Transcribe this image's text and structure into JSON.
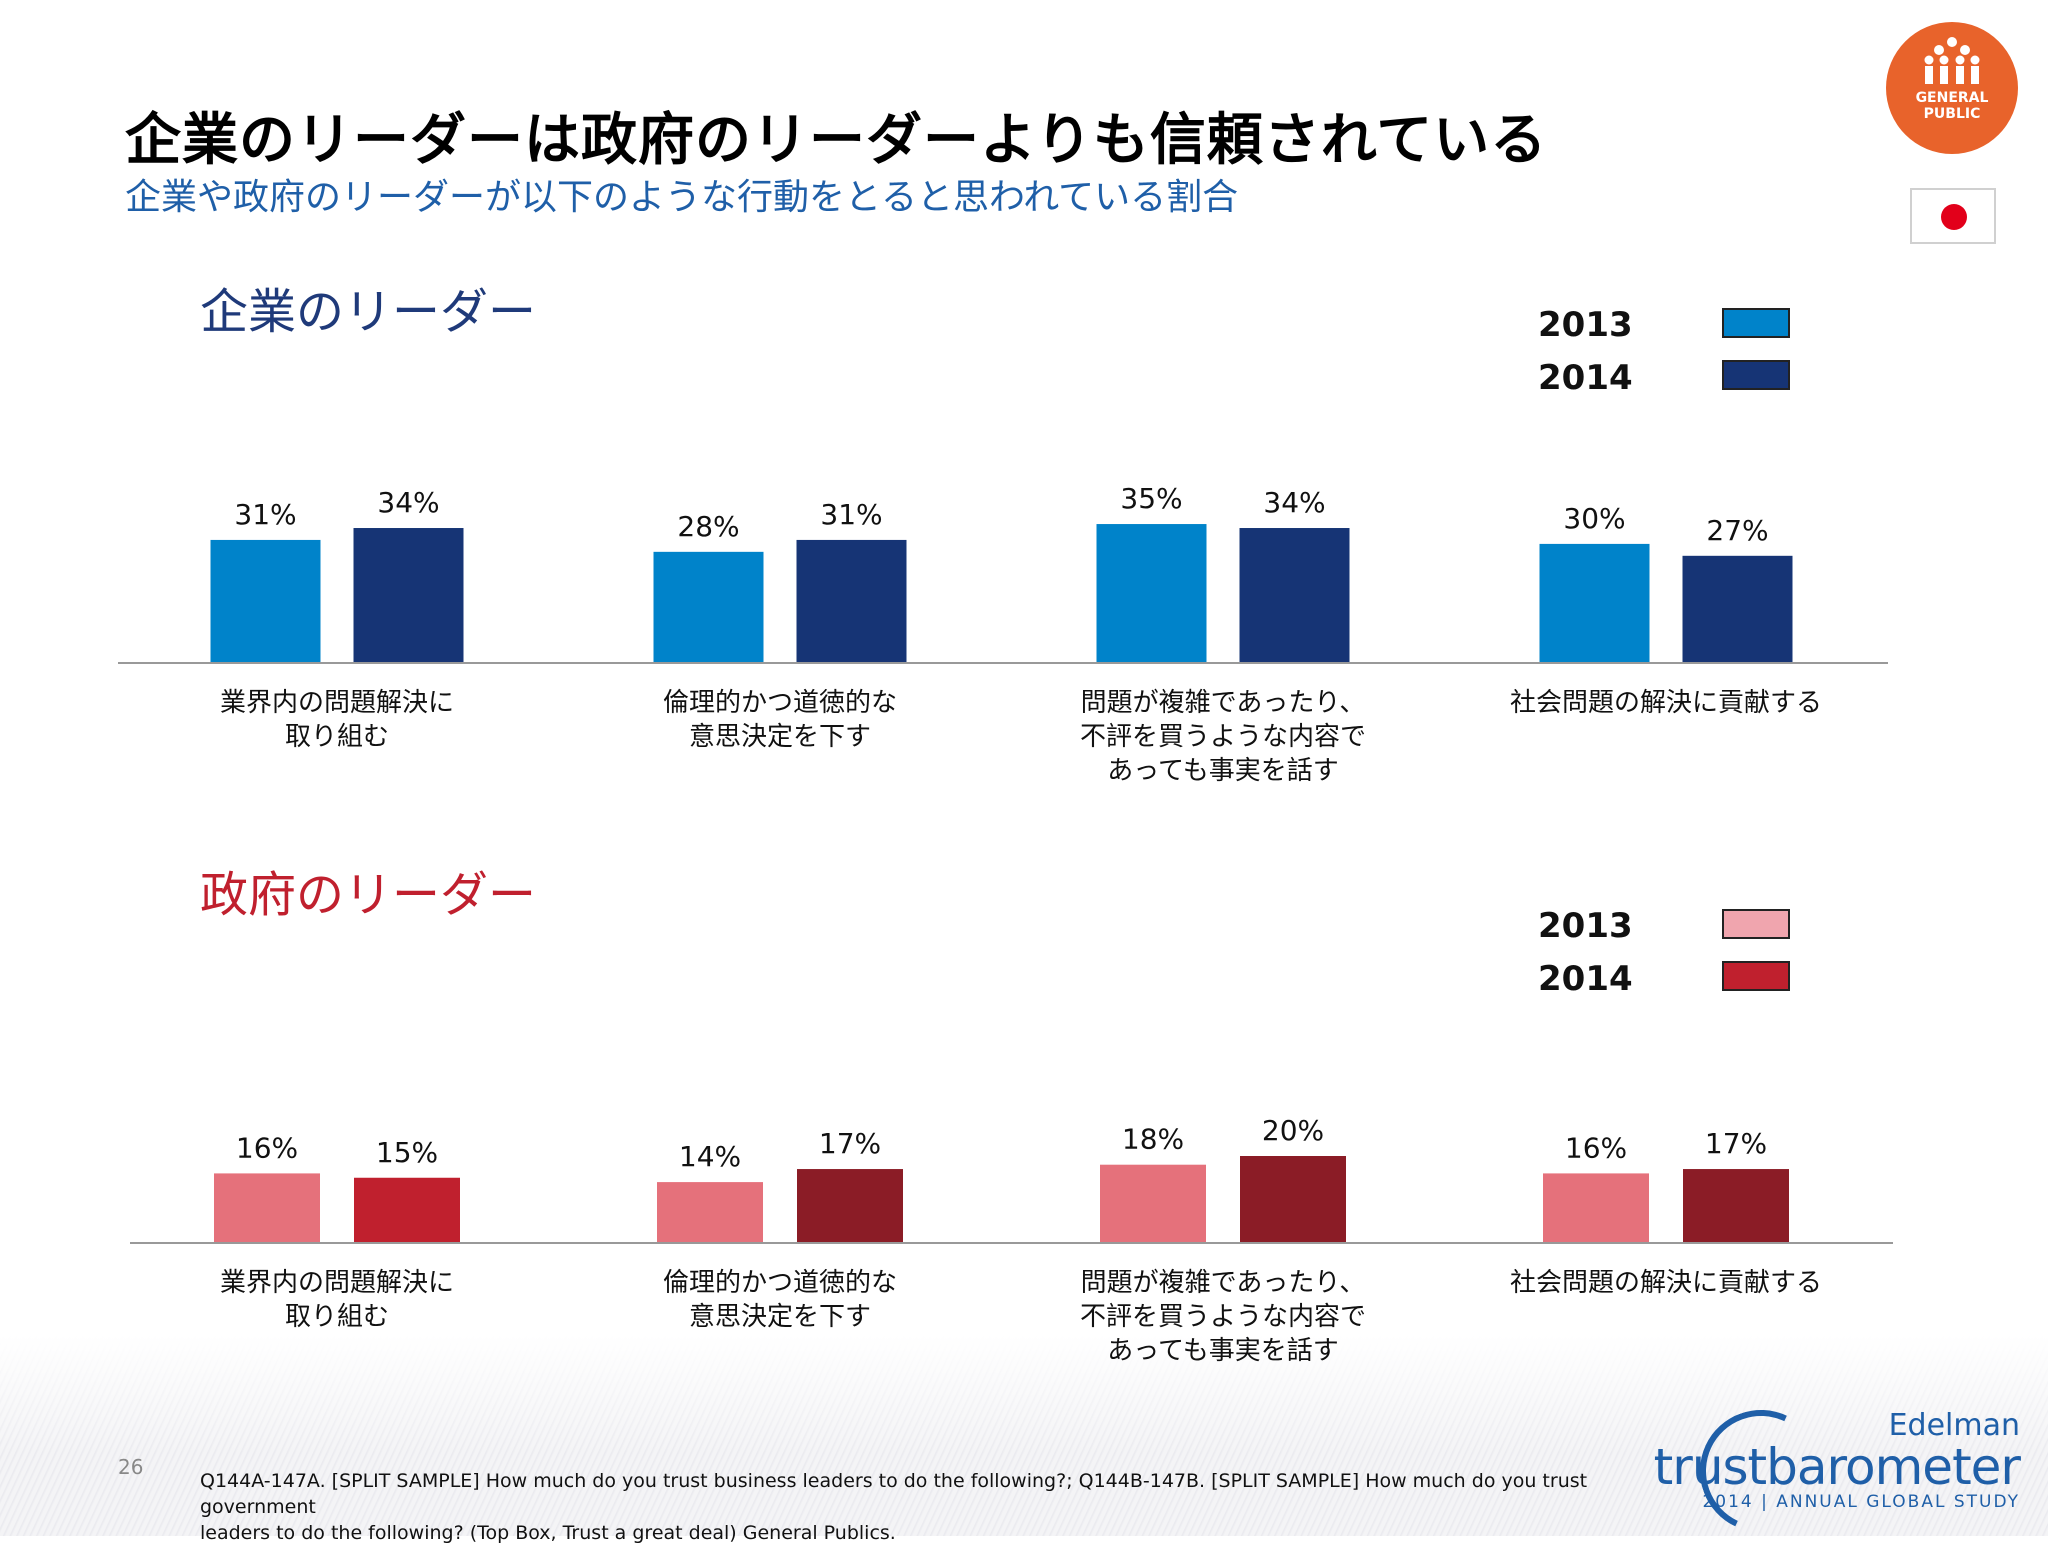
{
  "header": {
    "title": "企業のリーダーは政府のリーダーよりも信頼されている",
    "subtitle": "企業や政府のリーダーが以下のような行動をとると思われている割合"
  },
  "badge": {
    "line1": "GENERAL",
    "line2": "PUBLIC",
    "color": "#e8632b"
  },
  "flag": {
    "icon": "japan-flag-icon"
  },
  "categories": [
    [
      "業界内の問題解決に",
      "取り組む"
    ],
    [
      "倫理的かつ道徳的な",
      "意思決定を下す"
    ],
    [
      "問題が複雑であったり、",
      "不評を買うような内容で",
      "あっても事実を話す"
    ],
    [
      "社会問題の解決に貢献する"
    ]
  ],
  "chart_data": [
    {
      "type": "bar",
      "title": "企業のリーダー",
      "title_color": "#1f3a7a",
      "categories": [
        "業界内の問題解決に取り組む",
        "倫理的かつ道徳的な意思決定を下す",
        "問題が複雑であったり、不評を買うような内容であっても事実を話す",
        "社会問題の解決に貢献する"
      ],
      "series": [
        {
          "name": "2013",
          "values": [
            31,
            28,
            35,
            30
          ],
          "labels": [
            "31%",
            "28%",
            "35%",
            "30%"
          ],
          "color": "#0083ca",
          "colors": [
            "#0083ca",
            "#0083ca",
            "#0083ca",
            "#0083ca"
          ]
        },
        {
          "name": "2014",
          "values": [
            34,
            31,
            34,
            27
          ],
          "labels": [
            "34%",
            "31%",
            "34%",
            "27%"
          ],
          "color": "#163475",
          "colors": [
            "#163475",
            "#163475",
            "#163475",
            "#163475"
          ]
        }
      ],
      "legend": "top-right",
      "grid": false,
      "ylim": [
        0,
        100
      ]
    },
    {
      "type": "bar",
      "title": "政府のリーダー",
      "title_color": "#c0202e",
      "categories": [
        "業界内の問題解決に取り組む",
        "倫理的かつ道徳的な意思決定を下す",
        "問題が複雑であったり、不評を買うような内容であっても事実を話す",
        "社会問題の解決に貢献する"
      ],
      "series": [
        {
          "name": "2013",
          "values": [
            16,
            14,
            18,
            16
          ],
          "labels": [
            "16%",
            "14%",
            "18%",
            "16%"
          ],
          "color": "#f0a5ae",
          "colors": [
            "#e5717b",
            "#e5717b",
            "#e5717b",
            "#e5717b"
          ]
        },
        {
          "name": "2014",
          "values": [
            15,
            17,
            20,
            17
          ],
          "labels": [
            "15%",
            "17%",
            "20%",
            "17%"
          ],
          "color": "#c0202e",
          "colors": [
            "#c0202e",
            "#8b1c26",
            "#8b1c26",
            "#8b1c26"
          ]
        }
      ],
      "legend": "top-right",
      "grid": false,
      "ylim": [
        0,
        100
      ]
    }
  ],
  "footer": {
    "page_number": "26",
    "footnote_line1": "Q144A-147A. [SPLIT SAMPLE] How much do you trust business leaders to do the following?; Q144B-147B. [SPLIT SAMPLE] How much do you trust government",
    "footnote_line2": "leaders to do the following? (Top Box, Trust a great deal) General Publics.",
    "logo_brand": "Edelman",
    "logo_trust": "trust",
    "logo_barometer": "barometer",
    "logo_study": "2014 | ANNUAL GLOBAL STUDY"
  }
}
